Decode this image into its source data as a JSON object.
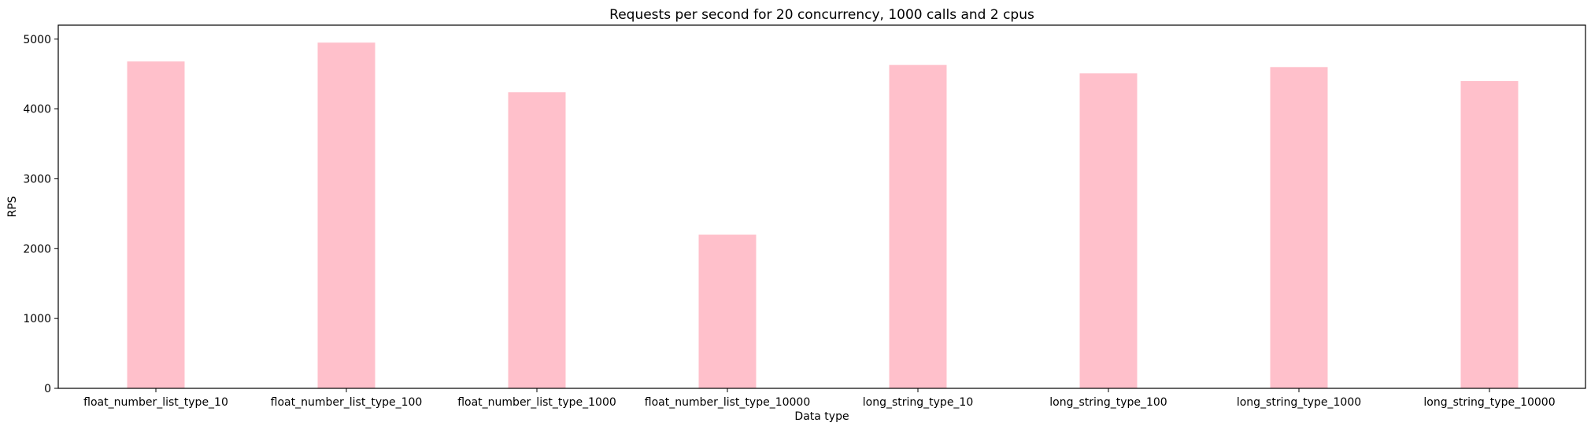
{
  "chart_data": {
    "type": "bar",
    "title": "Requests per second for 20 concurrency, 1000 calls and 2 cpus",
    "xlabel": "Data type",
    "ylabel": "RPS",
    "categories": [
      "float_number_list_type_10",
      "float_number_list_type_100",
      "float_number_list_type_1000",
      "float_number_list_type_10000",
      "long_string_type_10",
      "long_string_type_100",
      "long_string_type_1000",
      "long_string_type_10000"
    ],
    "values": [
      4680,
      4950,
      4240,
      2200,
      4630,
      4510,
      4600,
      4400
    ],
    "ylim": [
      0,
      5200
    ],
    "yticks": [
      0,
      1000,
      2000,
      3000,
      4000,
      5000
    ],
    "bar_color": "#ffc0cb",
    "grid": false,
    "legend": "none"
  }
}
